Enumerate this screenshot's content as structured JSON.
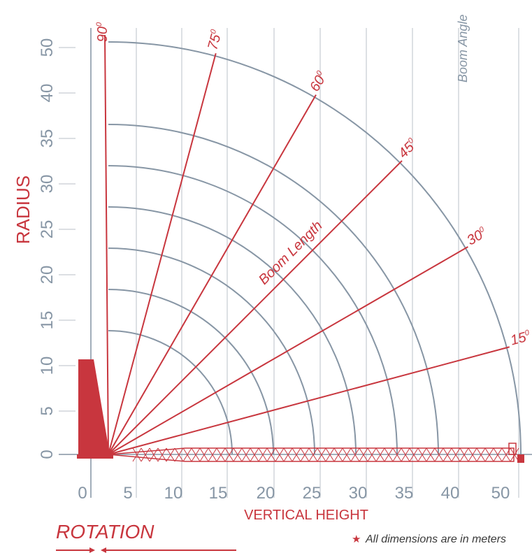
{
  "labels": {
    "y_axis_title": "RADIUS",
    "x_axis_title": "VERTICAL HEIGHT",
    "boom_angle": "Boom Angle",
    "boom_length": "Boom Length",
    "rotation": "ROTATION",
    "note_star": "★",
    "note": "All dimensions are in meters"
  },
  "colors": {
    "red": "#c8363e",
    "grey": "#8796a5",
    "grid": "#c6ccd2"
  },
  "y_ticks": [
    "50",
    "40",
    "35",
    "30",
    "25",
    "20",
    "15",
    "10",
    "5",
    "0"
  ],
  "x_ticks": [
    "0",
    "5",
    "10",
    "15",
    "20",
    "25",
    "30",
    "35",
    "40",
    "50"
  ],
  "boom_lengths": [
    50,
    40,
    35,
    30,
    25,
    20,
    15
  ],
  "angles": [
    {
      "deg": 90,
      "text": "90",
      "sup": "0"
    },
    {
      "deg": 75,
      "text": "75",
      "sup": "0"
    },
    {
      "deg": 60,
      "text": "60",
      "sup": "0"
    },
    {
      "deg": 45,
      "text": "45",
      "sup": "0"
    },
    {
      "deg": 30,
      "text": "30",
      "sup": "0"
    },
    {
      "deg": 15,
      "text": "15",
      "sup": "0"
    }
  ]
}
